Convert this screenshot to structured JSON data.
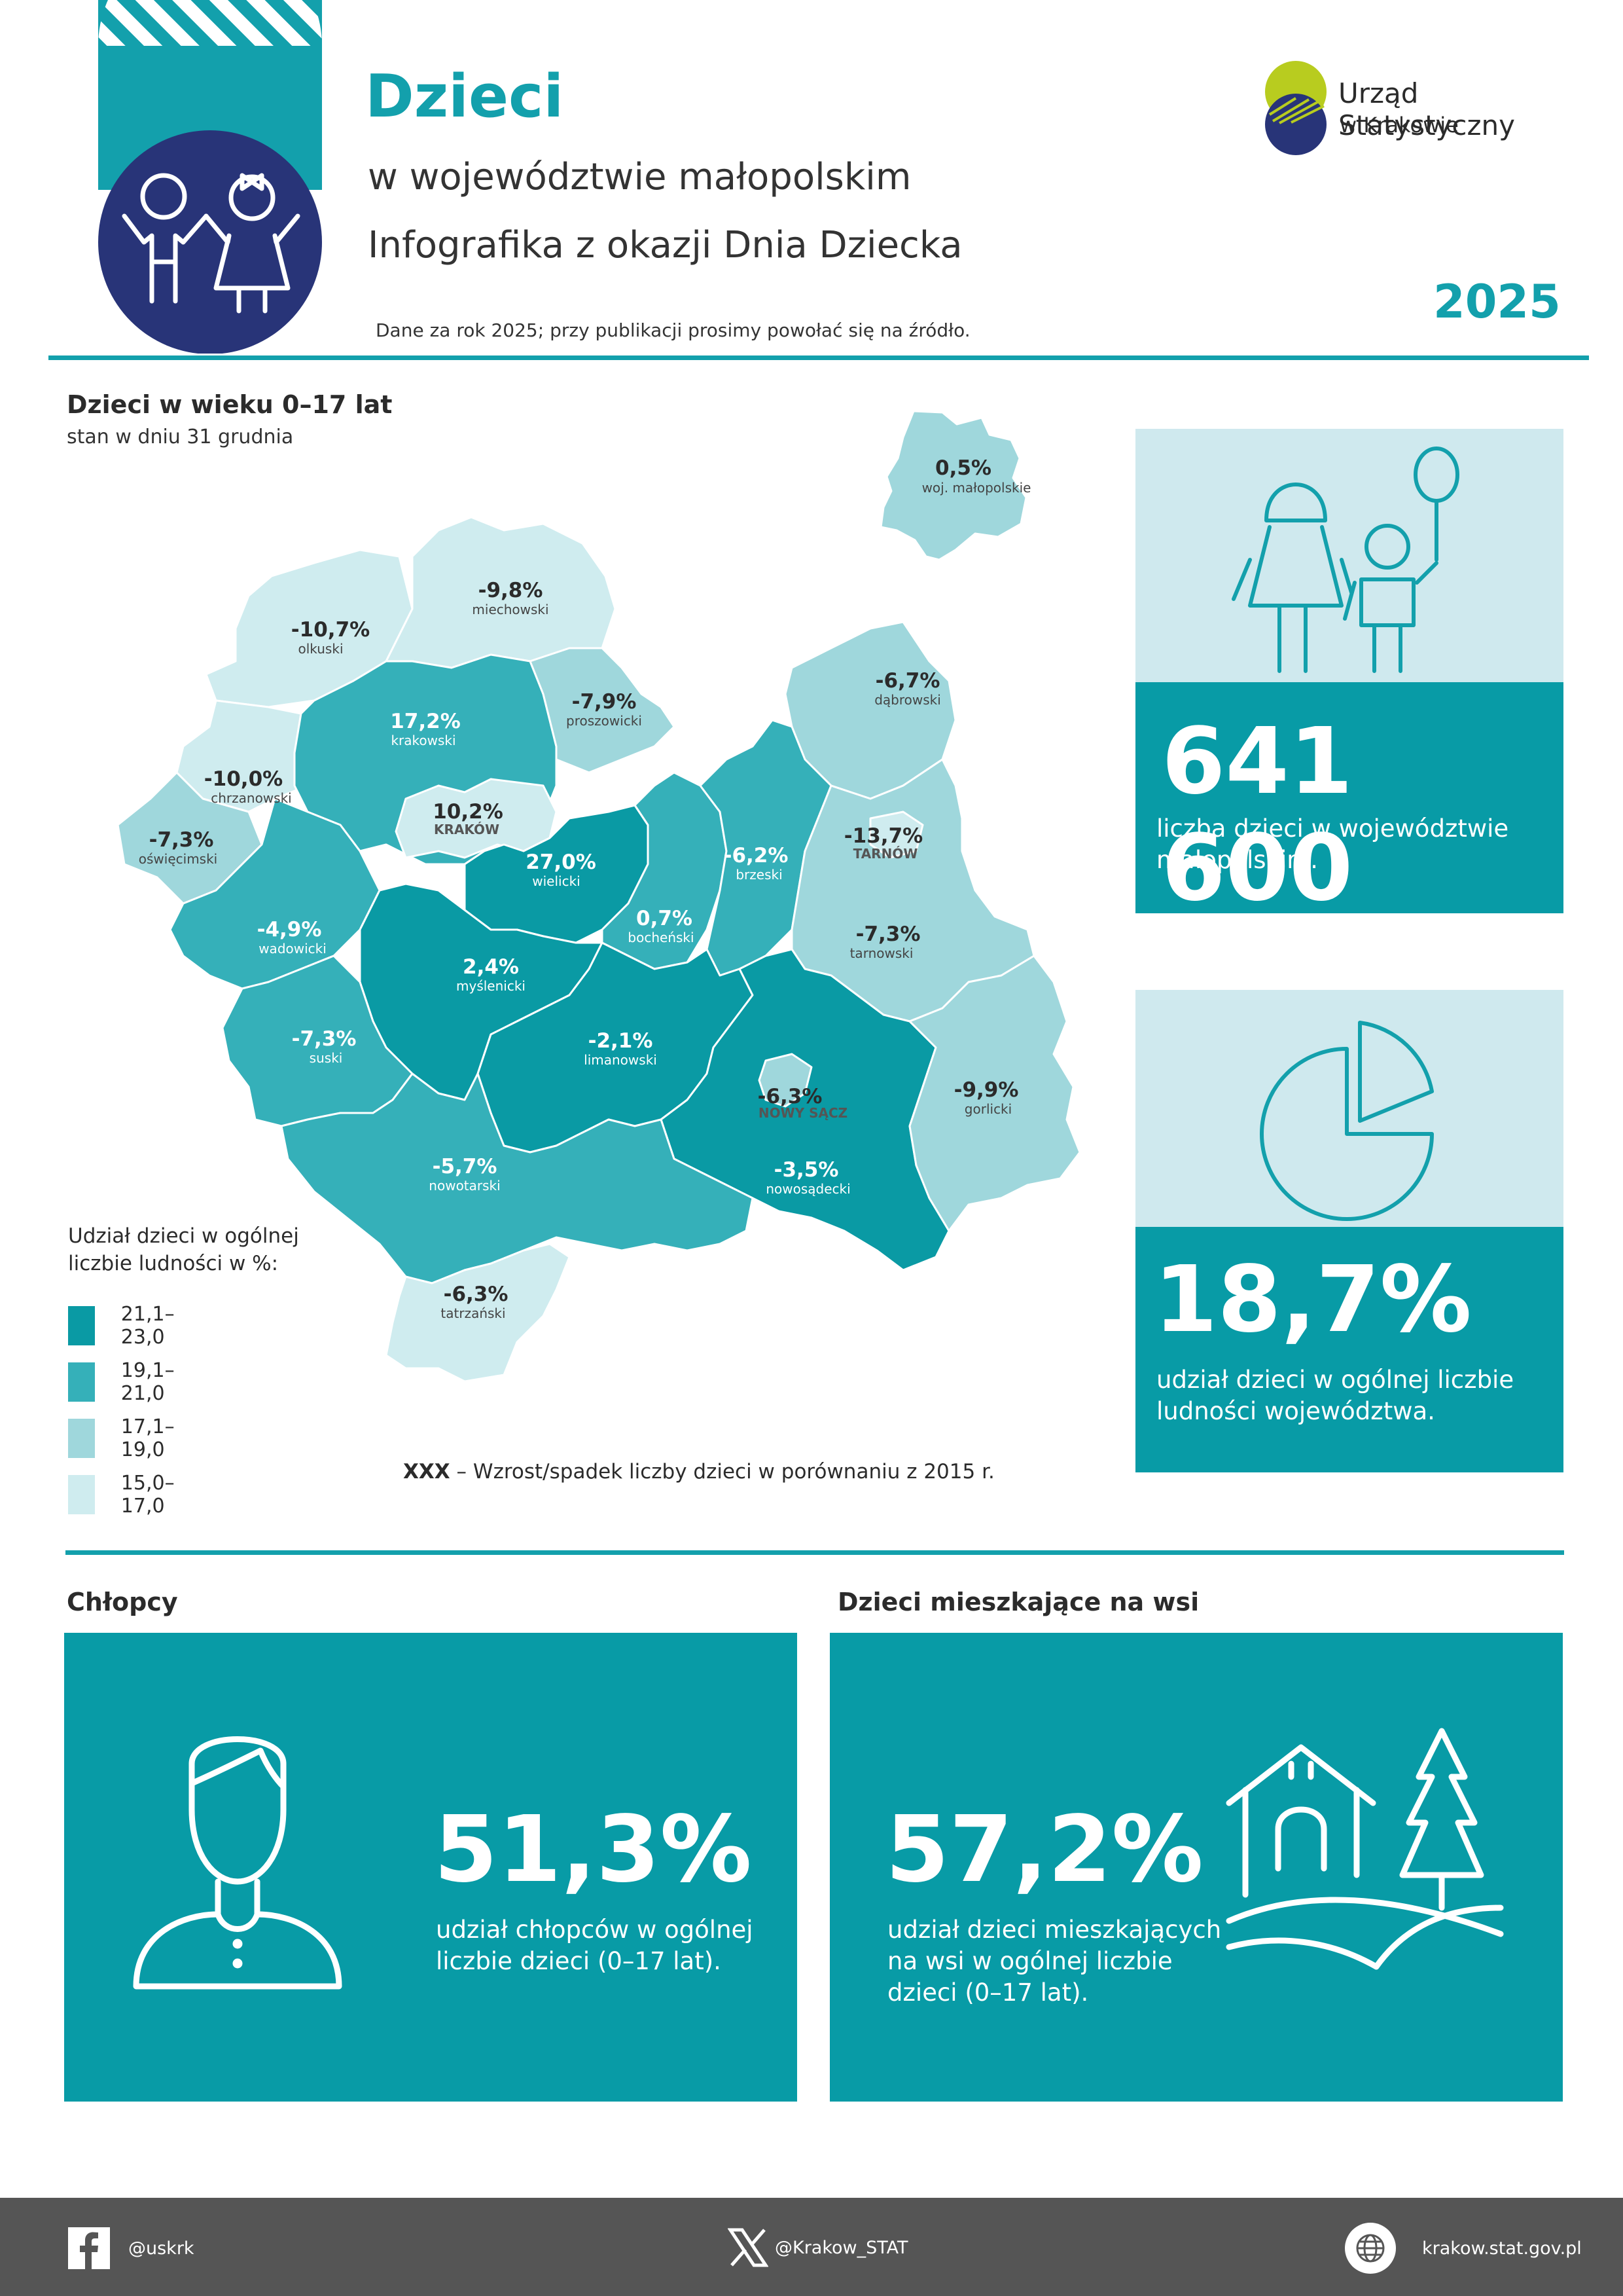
{
  "header": {
    "title": "Dzieci",
    "subtitle": "w województwie małopolskim",
    "subtitle2": "Infografika z okazji Dnia Dziecka",
    "source_note": "Dane za rok 2025; przy publikacji prosimy powołać się na źródło.",
    "year": "2025",
    "org_name": "Urząd Statystyczny",
    "org_city": "w Krakowie"
  },
  "map_section": {
    "title": "Dzieci w wieku 0–17 lat",
    "subtitle": "stan w dniu 31 grudnia",
    "legend_title": "Udział dzieci w ogólnej liczbie ludności w %:",
    "legend": [
      {
        "label": "21,1–23,0",
        "color": "#0a9aa4"
      },
      {
        "label": "19,1–21,0",
        "color": "#35b0b9"
      },
      {
        "label": "17,1–19,0",
        "color": "#9fd7dc"
      },
      {
        "label": "15,0–17,0",
        "color": "#cfecef"
      }
    ],
    "note_bold": "XXX",
    "note_text": " – Wzrost/spadek liczby dzieci w porównaniu z 2015 r.",
    "regions": [
      {
        "name": "woj. małopolskie",
        "change": "0,5%"
      },
      {
        "name": "miechowski",
        "change": "-9,8%"
      },
      {
        "name": "olkuski",
        "change": "-10,7%"
      },
      {
        "name": "proszowicki",
        "change": "-7,9%"
      },
      {
        "name": "dąbrowski",
        "change": "-6,7%"
      },
      {
        "name": "krakowski",
        "change": "17,2%"
      },
      {
        "name": "chrzanowski",
        "change": "-10,0%"
      },
      {
        "name": "KRAKÓW",
        "change": "10,2%"
      },
      {
        "name": "oświęcimski",
        "change": "-7,3%"
      },
      {
        "name": "wielicki",
        "change": "27,0%"
      },
      {
        "name": "brzeski",
        "change": "-6,2%"
      },
      {
        "name": "TARNÓW",
        "change": "-13,7%"
      },
      {
        "name": "wadowicki",
        "change": "-4,9%"
      },
      {
        "name": "bocheński",
        "change": "0,7%"
      },
      {
        "name": "tarnowski",
        "change": "-7,3%"
      },
      {
        "name": "myślenicki",
        "change": "2,4%"
      },
      {
        "name": "suski",
        "change": "-7,3%"
      },
      {
        "name": "limanowski",
        "change": "-2,1%"
      },
      {
        "name": "NOWY SĄCZ",
        "change": "-6,3%"
      },
      {
        "name": "gorlicki",
        "change": "-9,9%"
      },
      {
        "name": "nowotarski",
        "change": "-5,7%"
      },
      {
        "name": "nowosądecki",
        "change": "-3,5%"
      },
      {
        "name": "tatrzański",
        "change": "-6,3%"
      }
    ]
  },
  "card_children": {
    "value": "641 600",
    "desc": "liczba dzieci w województwie małopolskim."
  },
  "card_share": {
    "value": "18,7%",
    "desc": "udział dzieci w ogólnej liczbie ludności województwa."
  },
  "boys": {
    "title": "Chłopcy",
    "value": "51,3%",
    "desc": "udział chłopców w ogólnej liczbie dzieci (0–17 lat)."
  },
  "rural": {
    "title": "Dzieci mieszkające na wsi",
    "value": "57,2%",
    "desc": "udział dzieci mieszkających na wsi w ogólnej liczbie dzieci (0–17 lat)."
  },
  "footer": {
    "facebook": "@uskrk",
    "x": "@Krakow_STAT",
    "web": "krakow.stat.gov.pl"
  },
  "colors": {
    "accent": "#13a0ac",
    "dark_navy": "#283478",
    "lime": "#b8cc1f",
    "footer": "#555555"
  }
}
